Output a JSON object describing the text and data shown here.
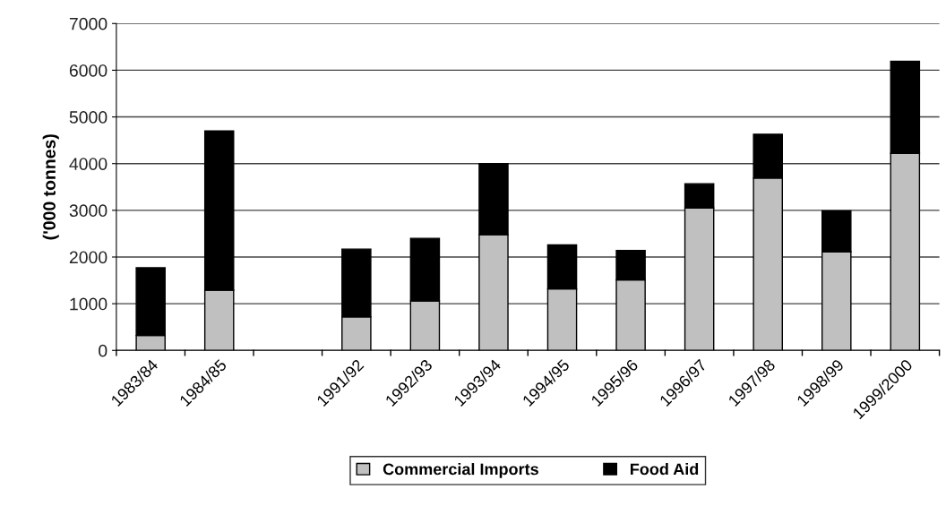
{
  "chart_data": {
    "type": "bar",
    "stacked": true,
    "ylabel": "('000 tonnes)",
    "categories": [
      "1983/84",
      "1984/85",
      null,
      "1991/92",
      "1992/93",
      "1993/94",
      "1994/95",
      "1995/96",
      "1996/97",
      "1997/98",
      "1998/99",
      "1999/2000"
    ],
    "series": [
      {
        "name": "Commercial Imports",
        "color": "#c0c0c0",
        "values": [
          320,
          1290,
          null,
          720,
          1060,
          2480,
          1320,
          1510,
          3050,
          3690,
          2110,
          4220
        ]
      },
      {
        "name": "Food Aid",
        "color": "#000000",
        "values": [
          1450,
          3410,
          null,
          1450,
          1340,
          1520,
          940,
          630,
          520,
          940,
          880,
          1970
        ]
      }
    ],
    "ylim": [
      0,
      7000
    ],
    "yticks": [
      0,
      1000,
      2000,
      3000,
      4000,
      5000,
      6000,
      7000
    ],
    "grid": "y",
    "legend": "bottom"
  }
}
